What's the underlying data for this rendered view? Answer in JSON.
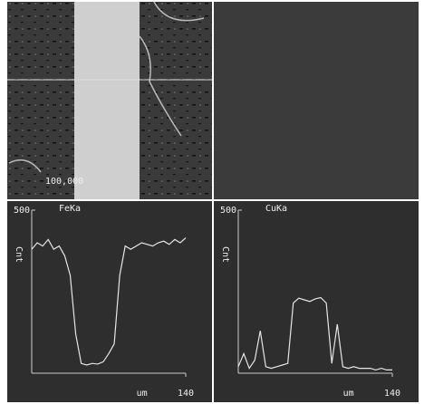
{
  "micrograph": {
    "scale_label": "100,000"
  },
  "chart_data": [
    {
      "type": "line",
      "title": "FeKa",
      "ylabel": "Cnt",
      "xlabel": "um",
      "color": "#e6e6e6",
      "x": [
        0,
        5,
        10,
        15,
        20,
        25,
        30,
        35,
        40,
        45,
        50,
        55,
        60,
        65,
        70,
        75,
        80,
        85,
        90,
        95,
        100,
        105,
        110,
        115,
        120,
        125,
        130,
        135,
        140
      ],
      "values": [
        380,
        400,
        390,
        410,
        380,
        390,
        360,
        300,
        120,
        30,
        25,
        30,
        28,
        35,
        60,
        90,
        300,
        390,
        380,
        390,
        400,
        395,
        390,
        400,
        405,
        395,
        410,
        400,
        415
      ],
      "xlim": [
        0,
        140
      ],
      "ylim": [
        0,
        500
      ],
      "xticks": [
        140
      ],
      "yticks": [
        500
      ]
    },
    {
      "type": "line",
      "title": "CuKa",
      "ylabel": "Cnt",
      "xlabel": "um",
      "color": "#e6e6e6",
      "x": [
        0,
        5,
        10,
        15,
        20,
        25,
        30,
        35,
        40,
        45,
        50,
        55,
        60,
        65,
        70,
        75,
        80,
        85,
        90,
        95,
        100,
        105,
        110,
        115,
        120,
        125,
        130,
        135,
        140
      ],
      "values": [
        20,
        60,
        15,
        40,
        130,
        20,
        15,
        20,
        25,
        30,
        215,
        230,
        225,
        220,
        228,
        232,
        215,
        30,
        150,
        20,
        15,
        20,
        15,
        15,
        15,
        10,
        15,
        10,
        10
      ],
      "xlim": [
        0,
        140
      ],
      "ylim": [
        0,
        500
      ],
      "xticks": [
        140
      ],
      "yticks": [
        500
      ]
    }
  ]
}
